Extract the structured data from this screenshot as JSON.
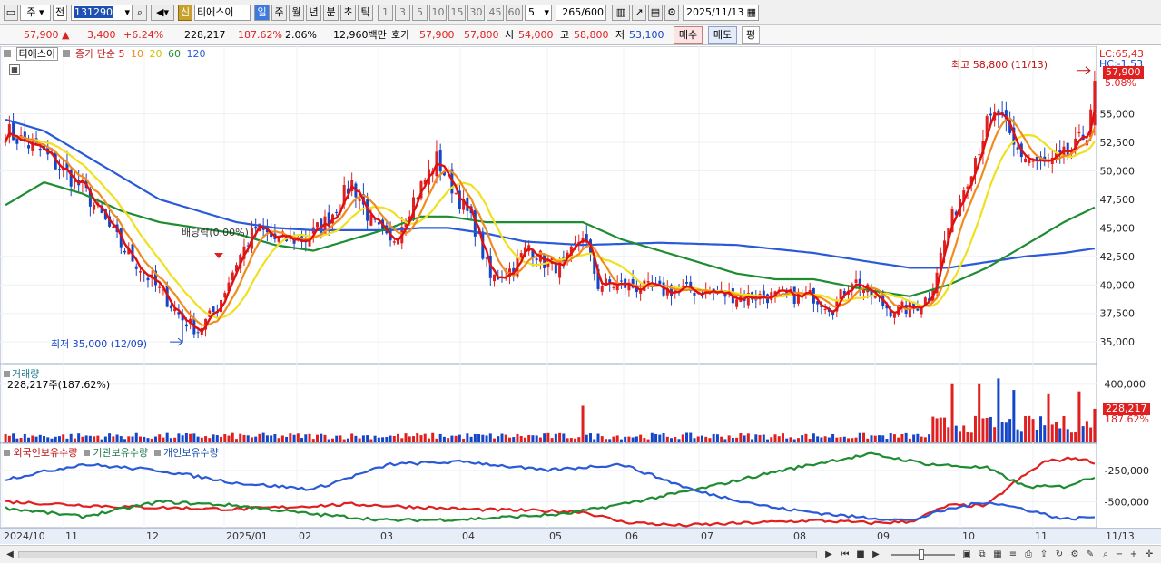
{
  "toolbar": {
    "period_label": "주",
    "prev_label": "전",
    "code": "131290",
    "badge_new": "신",
    "stock_name": "티에스이",
    "periods": [
      "일",
      "주",
      "월",
      "년",
      "분",
      "초",
      "틱"
    ],
    "intervals": [
      "1",
      "3",
      "5",
      "10",
      "15",
      "30",
      "45",
      "60"
    ],
    "interval_value": "5",
    "count_value": "265",
    "count_total": "/600",
    "date": "2025/11/13"
  },
  "quote": {
    "price": "57,900",
    "arrow": "▲",
    "change": "3,400",
    "change_pct": "+6.24%",
    "volume": "228,217",
    "volume_ratio": "187.62%",
    "turnover": "2.06%",
    "amount": "12,960백만",
    "hoga_label": "호가",
    "ask": "57,900",
    "bid": "57,800",
    "open_label": "시",
    "open": "54,000",
    "high_label": "고",
    "high": "58,800",
    "low_label": "저",
    "low": "53,100",
    "buy_label": "매수",
    "sell_label": "매도",
    "avg_label": "평"
  },
  "legend": {
    "name": "티에스이",
    "series": "종가 단순",
    "ma": [
      "5",
      "10",
      "20",
      "60",
      "120"
    ]
  },
  "price_panel": {
    "lc": "LC:65,43",
    "hc": "HC:-1.53",
    "tag_price": "57,900",
    "tag_pct": "5.08%",
    "y_labels": [
      "55,000",
      "52,500",
      "50,000",
      "47,500",
      "45,000",
      "42,500",
      "40,000",
      "37,500",
      "35,000"
    ],
    "high_note": "최고 58,800 (11/13)",
    "low_note": "최저 35,000 (12/09)",
    "dividend_note": "배당락(0.00%)"
  },
  "volume_panel": {
    "title": "거래량",
    "info": "228,217주(187.62%)",
    "y_label": "400,000",
    "tag_value": "228,217",
    "tag_pct": "187.62%"
  },
  "holding_panel": {
    "titles": [
      "외국인보유수량",
      "기관보유수량",
      "개인보유수량"
    ],
    "y_labels": [
      "-250,000",
      "-500,000"
    ]
  },
  "x_axis": {
    "labels": [
      "2024/10",
      "11",
      "12",
      "2025/01",
      "02",
      "03",
      "04",
      "05",
      "06",
      "07",
      "08",
      "09",
      "10",
      "11"
    ],
    "right_label": "11/13"
  },
  "colors": {
    "up": "#e02020",
    "down": "#1646c8",
    "ma5": "#e01010",
    "ma10": "#f08c1e",
    "ma20": "#f0e020",
    "ma60": "#1e8c30",
    "ma120": "#2a5ad8"
  },
  "chart_data": {
    "type": "candlestick",
    "title": "티에스이",
    "y_range": [
      33500,
      59500
    ],
    "y_ticks": [
      35000,
      37500,
      40000,
      42500,
      45000,
      47500,
      50000,
      52500,
      55000
    ],
    "x": [
      "2024/10",
      "11",
      "12",
      "2025/01",
      "02",
      "03",
      "04",
      "05",
      "06",
      "07",
      "08",
      "09",
      "10",
      "11"
    ],
    "close_path": [
      [
        0,
        53500
      ],
      [
        10,
        51500
      ],
      [
        20,
        48500
      ],
      [
        30,
        43500
      ],
      [
        40,
        39500
      ],
      [
        46,
        37000
      ],
      [
        50,
        36000
      ],
      [
        55,
        38000
      ],
      [
        60,
        42000
      ],
      [
        65,
        45000
      ],
      [
        70,
        44000
      ],
      [
        78,
        44000
      ],
      [
        84,
        45800
      ],
      [
        90,
        49000
      ],
      [
        95,
        45500
      ],
      [
        100,
        43500
      ],
      [
        106,
        47500
      ],
      [
        112,
        51000
      ],
      [
        118,
        47500
      ],
      [
        122,
        45000
      ],
      [
        126,
        40500
      ],
      [
        132,
        41500
      ],
      [
        136,
        43500
      ],
      [
        140,
        42000
      ],
      [
        145,
        41500
      ],
      [
        150,
        44500
      ],
      [
        154,
        40000
      ],
      [
        160,
        40000
      ],
      [
        170,
        39500
      ],
      [
        180,
        39500
      ],
      [
        190,
        39000
      ],
      [
        200,
        39000
      ],
      [
        210,
        39000
      ],
      [
        215,
        38000
      ],
      [
        220,
        40500
      ],
      [
        226,
        38800
      ],
      [
        230,
        37800
      ],
      [
        236,
        38000
      ],
      [
        240,
        39000
      ],
      [
        245,
        45000
      ],
      [
        250,
        49500
      ],
      [
        255,
        54000
      ],
      [
        258,
        55000
      ],
      [
        262,
        52000
      ],
      [
        266,
        51000
      ],
      [
        270,
        50500
      ],
      [
        274,
        51000
      ],
      [
        278,
        52000
      ],
      [
        281,
        53500
      ],
      [
        283,
        57900
      ]
    ],
    "ma60_path": [
      [
        0,
        47000
      ],
      [
        10,
        49000
      ],
      [
        20,
        48000
      ],
      [
        30,
        46500
      ],
      [
        40,
        45500
      ],
      [
        50,
        45000
      ],
      [
        60,
        44500
      ],
      [
        70,
        43500
      ],
      [
        80,
        43000
      ],
      [
        90,
        44000
      ],
      [
        100,
        45000
      ],
      [
        108,
        46000
      ],
      [
        115,
        46000
      ],
      [
        125,
        45500
      ],
      [
        140,
        45500
      ],
      [
        150,
        45500
      ],
      [
        160,
        44000
      ],
      [
        170,
        43000
      ],
      [
        180,
        42000
      ],
      [
        190,
        41000
      ],
      [
        200,
        40500
      ],
      [
        210,
        40500
      ],
      [
        225,
        39500
      ],
      [
        235,
        39000
      ],
      [
        245,
        40000
      ],
      [
        255,
        41500
      ],
      [
        265,
        43500
      ],
      [
        275,
        45500
      ],
      [
        283,
        46800
      ]
    ],
    "ma120_path": [
      [
        0,
        54500
      ],
      [
        10,
        53500
      ],
      [
        20,
        51500
      ],
      [
        30,
        49500
      ],
      [
        40,
        47500
      ],
      [
        50,
        46500
      ],
      [
        60,
        45500
      ],
      [
        70,
        45000
      ],
      [
        80,
        44800
      ],
      [
        90,
        44800
      ],
      [
        100,
        44800
      ],
      [
        108,
        45000
      ],
      [
        115,
        45000
      ],
      [
        125,
        44500
      ],
      [
        135,
        43800
      ],
      [
        150,
        43500
      ],
      [
        170,
        43700
      ],
      [
        190,
        43500
      ],
      [
        210,
        42800
      ],
      [
        225,
        42000
      ],
      [
        235,
        41500
      ],
      [
        245,
        41500
      ],
      [
        255,
        42000
      ],
      [
        265,
        42500
      ],
      [
        275,
        42800
      ],
      [
        283,
        43200
      ]
    ],
    "volume_spikes": [
      [
        150,
        250000
      ],
      [
        246,
        400000
      ],
      [
        253,
        400000
      ],
      [
        258,
        440000
      ],
      [
        262,
        360000
      ],
      [
        271,
        330000
      ],
      [
        279,
        350000
      ],
      [
        283,
        228217
      ]
    ],
    "holding_series": [
      {
        "name": "외국인보유수량",
        "color": "#e02020",
        "path": [
          [
            0,
            -500000
          ],
          [
            30,
            -540000
          ],
          [
            60,
            -560000
          ],
          [
            90,
            -520000
          ],
          [
            120,
            -560000
          ],
          [
            150,
            -580000
          ],
          [
            160,
            -660000
          ],
          [
            175,
            -690000
          ],
          [
            210,
            -650000
          ],
          [
            225,
            -670000
          ],
          [
            235,
            -660000
          ],
          [
            245,
            -530000
          ],
          [
            255,
            -530000
          ],
          [
            262,
            -350000
          ],
          [
            270,
            -180000
          ],
          [
            278,
            -150000
          ],
          [
            283,
            -185000
          ]
        ]
      },
      {
        "name": "기관보유수량",
        "color": "#1e8c30",
        "path": [
          [
            0,
            -550000
          ],
          [
            20,
            -620000
          ],
          [
            40,
            -500000
          ],
          [
            60,
            -530000
          ],
          [
            80,
            -600000
          ],
          [
            100,
            -650000
          ],
          [
            120,
            -640000
          ],
          [
            145,
            -600000
          ],
          [
            160,
            -520000
          ],
          [
            180,
            -400000
          ],
          [
            200,
            -260000
          ],
          [
            215,
            -170000
          ],
          [
            225,
            -120000
          ],
          [
            240,
            -200000
          ],
          [
            255,
            -230000
          ],
          [
            265,
            -380000
          ],
          [
            275,
            -380000
          ],
          [
            283,
            -300000
          ]
        ]
      },
      {
        "name": "개인보유수량",
        "color": "#2a5ad8",
        "path": [
          [
            0,
            -320000
          ],
          [
            20,
            -200000
          ],
          [
            40,
            -250000
          ],
          [
            60,
            -350000
          ],
          [
            80,
            -400000
          ],
          [
            100,
            -200000
          ],
          [
            120,
            -180000
          ],
          [
            140,
            -250000
          ],
          [
            160,
            -200000
          ],
          [
            180,
            -420000
          ],
          [
            200,
            -550000
          ],
          [
            220,
            -620000
          ],
          [
            235,
            -650000
          ],
          [
            245,
            -560000
          ],
          [
            255,
            -500000
          ],
          [
            265,
            -560000
          ],
          [
            275,
            -640000
          ],
          [
            283,
            -620000
          ]
        ]
      }
    ]
  }
}
